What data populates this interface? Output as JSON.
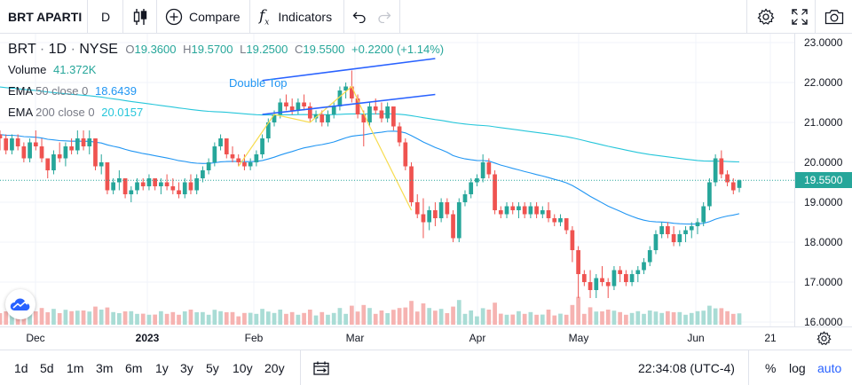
{
  "toolbar": {
    "symbol_label": "BRT APARTI",
    "interval_label": "D",
    "compare_label": "Compare",
    "indicators_label": "Indicators"
  },
  "legend": {
    "symbol": "BRT",
    "interval": "1D",
    "exchange": "NYSE",
    "o_label": "O",
    "o_value": "19.3600",
    "h_label": "H",
    "h_value": "19.5700",
    "l_label": "L",
    "l_value": "19.2500",
    "c_label": "C",
    "c_value": "19.5500",
    "change": "+0.2200 (+1.14%)",
    "volume_label": "Volume",
    "volume_value": "41.372K",
    "ema50_label": "EMA",
    "ema50_params": "50 close 0",
    "ema50_value": "18.6439",
    "ema200_label": "EMA",
    "ema200_params": "200 close 0",
    "ema200_value": "20.0157"
  },
  "annotation": {
    "pattern_label": "Double Top"
  },
  "price_axis": {
    "ticks": [
      "23.0000",
      "22.0000",
      "21.0000",
      "20.0000",
      "19.0000",
      "18.0000",
      "17.0000",
      "16.0000"
    ],
    "last_price": "19.5500"
  },
  "time_axis": {
    "ticks": [
      "Dec",
      "2023",
      "Feb",
      "Mar",
      "Apr",
      "May",
      "Jun",
      "21"
    ]
  },
  "bottom": {
    "ranges": [
      "1d",
      "5d",
      "1m",
      "3m",
      "6m",
      "1y",
      "3y",
      "5y",
      "10y",
      "20y"
    ],
    "clock": "22:34:08 (UTC-4)",
    "percent_label": "%",
    "log_label": "log",
    "auto_label": "auto"
  },
  "colors": {
    "up": "#26a69a",
    "down": "#ef5350",
    "ema50": "#2196f3",
    "ema200": "#26c6da",
    "pattern": "#f7dc4f",
    "channel": "#2962ff",
    "vol_up": "#a9dcd5",
    "vol_down": "#f6b3b1"
  },
  "chart_data": {
    "type": "candlestick",
    "title": "BRT 1D NYSE",
    "x_labels": [
      "Dec",
      "2023",
      "Feb",
      "Mar",
      "Apr",
      "May",
      "Jun",
      "21"
    ],
    "ylim": [
      15.9,
      23.1
    ],
    "series": [
      {
        "name": "BRT",
        "ohlc": [
          [
            20.7,
            20.8,
            20.3,
            20.6
          ],
          [
            20.6,
            20.7,
            20.2,
            20.3
          ],
          [
            20.3,
            20.7,
            20.2,
            20.6
          ],
          [
            20.6,
            20.7,
            20.3,
            20.4
          ],
          [
            20.4,
            20.5,
            20.0,
            20.1
          ],
          [
            20.1,
            20.6,
            20.0,
            20.5
          ],
          [
            20.5,
            20.8,
            20.3,
            20.4
          ],
          [
            20.4,
            20.6,
            20.0,
            20.1
          ],
          [
            20.1,
            20.1,
            19.6,
            19.8
          ],
          [
            19.8,
            20.3,
            19.7,
            20.2
          ],
          [
            20.2,
            20.5,
            20.0,
            20.1
          ],
          [
            20.1,
            20.5,
            19.9,
            20.4
          ],
          [
            20.4,
            20.6,
            20.2,
            20.3
          ],
          [
            20.3,
            20.8,
            20.2,
            20.6
          ],
          [
            20.6,
            20.8,
            20.3,
            20.4
          ],
          [
            20.4,
            20.8,
            20.2,
            20.6
          ],
          [
            20.6,
            20.6,
            19.8,
            19.9
          ],
          [
            19.9,
            20.2,
            19.7,
            20.0
          ],
          [
            20.0,
            20.0,
            19.2,
            19.3
          ],
          [
            19.3,
            19.6,
            19.2,
            19.5
          ],
          [
            19.5,
            19.8,
            19.3,
            19.6
          ],
          [
            19.6,
            19.6,
            19.1,
            19.2
          ],
          [
            19.2,
            19.4,
            19.0,
            19.3
          ],
          [
            19.3,
            19.6,
            19.2,
            19.5
          ],
          [
            19.5,
            19.6,
            19.3,
            19.4
          ],
          [
            19.4,
            19.7,
            19.3,
            19.6
          ],
          [
            19.6,
            19.6,
            19.3,
            19.4
          ],
          [
            19.4,
            19.6,
            19.2,
            19.5
          ],
          [
            19.5,
            19.7,
            19.3,
            19.4
          ],
          [
            19.4,
            19.6,
            19.2,
            19.3
          ],
          [
            19.3,
            19.5,
            19.1,
            19.2
          ],
          [
            19.2,
            19.6,
            19.1,
            19.5
          ],
          [
            19.5,
            19.7,
            19.2,
            19.3
          ],
          [
            19.3,
            19.7,
            19.2,
            19.6
          ],
          [
            19.6,
            19.9,
            19.5,
            19.8
          ],
          [
            19.8,
            20.1,
            19.7,
            20.0
          ],
          [
            20.0,
            20.5,
            19.9,
            20.4
          ],
          [
            20.4,
            20.7,
            20.3,
            20.6
          ],
          [
            20.6,
            20.6,
            20.1,
            20.2
          ],
          [
            20.2,
            20.4,
            20.0,
            20.1
          ],
          [
            20.1,
            20.2,
            19.9,
            20.0
          ],
          [
            20.0,
            20.2,
            19.8,
            19.9
          ],
          [
            19.9,
            20.1,
            19.8,
            20.0
          ],
          [
            20.0,
            20.3,
            19.9,
            20.2
          ],
          [
            20.2,
            20.7,
            20.1,
            20.6
          ],
          [
            20.6,
            21.1,
            20.5,
            21.0
          ],
          [
            21.0,
            21.3,
            20.9,
            21.2
          ],
          [
            21.2,
            21.6,
            21.1,
            21.5
          ],
          [
            21.5,
            21.7,
            21.3,
            21.4
          ],
          [
            21.4,
            21.6,
            21.2,
            21.3
          ],
          [
            21.3,
            21.6,
            21.2,
            21.5
          ],
          [
            21.5,
            21.7,
            21.3,
            21.4
          ],
          [
            21.4,
            21.5,
            21.0,
            21.1
          ],
          [
            21.1,
            21.3,
            21.0,
            21.2
          ],
          [
            21.2,
            21.3,
            20.9,
            21.0
          ],
          [
            21.0,
            21.3,
            20.9,
            21.2
          ],
          [
            21.2,
            21.5,
            21.1,
            21.4
          ],
          [
            21.4,
            21.9,
            21.3,
            21.8
          ],
          [
            21.8,
            22.0,
            21.6,
            21.9
          ],
          [
            21.9,
            22.3,
            21.5,
            21.6
          ],
          [
            21.6,
            21.7,
            21.1,
            21.2
          ],
          [
            21.2,
            21.3,
            20.4,
            21.0
          ],
          [
            21.0,
            21.5,
            20.9,
            21.4
          ],
          [
            21.4,
            21.6,
            21.2,
            21.3
          ],
          [
            21.3,
            21.5,
            21.0,
            21.1
          ],
          [
            21.1,
            21.5,
            21.0,
            21.4
          ],
          [
            21.4,
            21.4,
            20.8,
            20.9
          ],
          [
            20.9,
            21.0,
            20.4,
            20.5
          ],
          [
            20.5,
            20.6,
            19.8,
            19.9
          ],
          [
            19.9,
            20.0,
            18.9,
            19.0
          ],
          [
            19.0,
            19.2,
            18.6,
            18.7
          ],
          [
            18.7,
            19.1,
            18.1,
            18.5
          ],
          [
            18.5,
            18.9,
            18.3,
            18.8
          ],
          [
            18.8,
            19.0,
            18.4,
            18.6
          ],
          [
            18.6,
            19.1,
            18.5,
            19.0
          ],
          [
            19.0,
            19.1,
            18.6,
            18.7
          ],
          [
            18.7,
            18.8,
            18.0,
            18.1
          ],
          [
            18.1,
            19.1,
            18.0,
            19.0
          ],
          [
            19.0,
            19.3,
            18.9,
            19.2
          ],
          [
            19.2,
            19.6,
            19.1,
            19.5
          ],
          [
            19.5,
            19.7,
            19.4,
            19.6
          ],
          [
            19.6,
            20.2,
            19.5,
            20.0
          ],
          [
            20.0,
            20.1,
            19.6,
            19.7
          ],
          [
            19.7,
            19.8,
            18.7,
            18.8
          ],
          [
            18.8,
            18.9,
            18.6,
            18.7
          ],
          [
            18.7,
            19.0,
            18.6,
            18.9
          ],
          [
            18.9,
            19.0,
            18.7,
            18.8
          ],
          [
            18.8,
            19.0,
            18.6,
            18.9
          ],
          [
            18.9,
            19.0,
            18.6,
            18.7
          ],
          [
            18.7,
            19.0,
            18.6,
            18.9
          ],
          [
            18.9,
            19.0,
            18.6,
            18.7
          ],
          [
            18.7,
            18.9,
            18.6,
            18.8
          ],
          [
            18.8,
            19.0,
            18.5,
            18.6
          ],
          [
            18.6,
            18.7,
            18.4,
            18.5
          ],
          [
            18.5,
            18.7,
            18.4,
            18.6
          ],
          [
            18.6,
            18.6,
            18.2,
            18.3
          ],
          [
            18.3,
            18.4,
            17.5,
            17.8
          ],
          [
            17.8,
            17.9,
            16.6,
            17.2
          ],
          [
            17.2,
            17.3,
            16.9,
            17.0
          ],
          [
            17.0,
            17.3,
            16.6,
            16.8
          ],
          [
            16.8,
            17.2,
            16.6,
            17.1
          ],
          [
            17.1,
            17.4,
            16.9,
            17.0
          ],
          [
            17.0,
            17.1,
            16.6,
            16.9
          ],
          [
            16.9,
            17.4,
            16.8,
            17.3
          ],
          [
            17.3,
            17.4,
            17.0,
            17.2
          ],
          [
            17.2,
            17.3,
            16.9,
            17.0
          ],
          [
            17.0,
            17.3,
            16.9,
            17.2
          ],
          [
            17.2,
            17.4,
            17.0,
            17.3
          ],
          [
            17.3,
            17.6,
            17.2,
            17.5
          ],
          [
            17.5,
            17.9,
            17.4,
            17.8
          ],
          [
            17.8,
            18.3,
            17.7,
            18.2
          ],
          [
            18.2,
            18.5,
            18.1,
            18.4
          ],
          [
            18.4,
            18.5,
            18.1,
            18.2
          ],
          [
            18.2,
            18.4,
            17.9,
            18.0
          ],
          [
            18.0,
            18.3,
            17.9,
            18.2
          ],
          [
            18.2,
            18.4,
            18.0,
            18.3
          ],
          [
            18.3,
            18.5,
            18.1,
            18.4
          ],
          [
            18.4,
            18.6,
            18.2,
            18.5
          ],
          [
            18.5,
            19.0,
            18.4,
            18.9
          ],
          [
            18.9,
            19.6,
            18.8,
            19.5
          ],
          [
            19.5,
            20.2,
            19.4,
            20.1
          ],
          [
            20.1,
            20.3,
            19.6,
            19.7
          ],
          [
            19.7,
            19.8,
            19.4,
            19.5
          ],
          [
            19.5,
            19.6,
            19.2,
            19.3
          ],
          [
            19.36,
            19.57,
            19.25,
            19.55
          ]
        ]
      },
      {
        "name": "EMA 50 close 0"
      },
      {
        "name": "EMA 200 close 0"
      },
      {
        "name": "Volume"
      }
    ]
  }
}
